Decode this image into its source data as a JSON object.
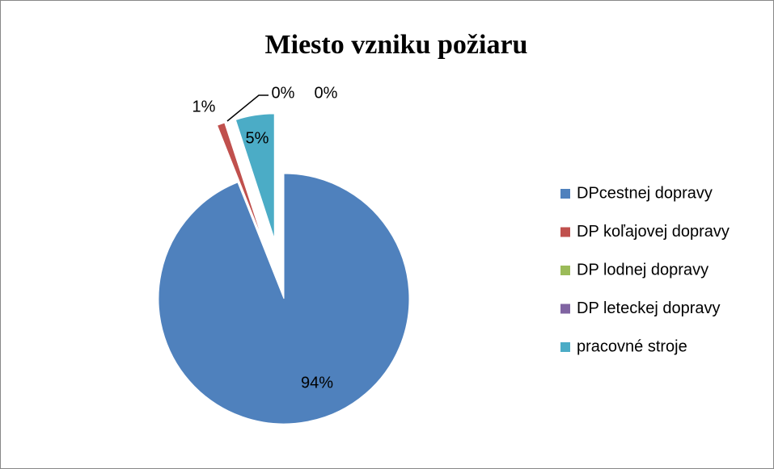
{
  "chart_data": {
    "type": "pie",
    "title": "Miesto vzniku požiaru",
    "categories": [
      "DPcestnej dopravy",
      "DP koľajovej dopravy",
      "DP lodnej dopravy",
      "DP leteckej dopravy",
      "pracovné stroje"
    ],
    "values": [
      94,
      1,
      0,
      0,
      5
    ],
    "value_labels": [
      "94%",
      "1%",
      "0%",
      "0%",
      "5%"
    ],
    "colors": [
      "#4f81bd",
      "#c0504d",
      "#9bbb59",
      "#8064a2",
      "#4bacc6"
    ],
    "legend": "right"
  }
}
